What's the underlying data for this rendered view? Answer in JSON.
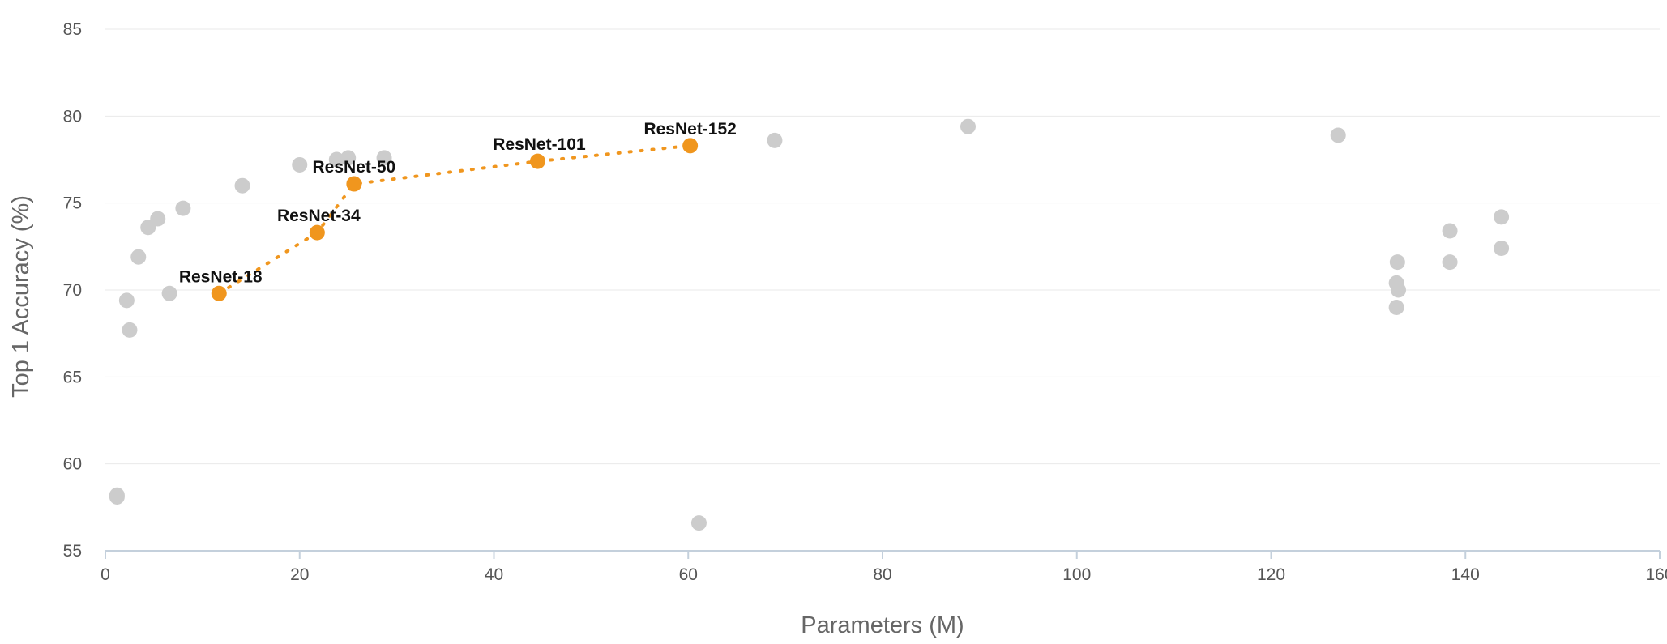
{
  "chart_data": {
    "type": "scatter",
    "xlabel": "Parameters (M)",
    "ylabel": "Top 1 Accuracy (%)",
    "xlim": [
      0,
      160
    ],
    "ylim": [
      55,
      85
    ],
    "xticks": [
      0,
      20,
      40,
      60,
      80,
      100,
      120,
      140,
      160
    ],
    "yticks": [
      55,
      60,
      65,
      70,
      75,
      80,
      85
    ],
    "grid": "horizontal",
    "colors": {
      "other": "#cccccc",
      "resnet": "#f0961e",
      "grid": "#eaeaea",
      "axis": "#c4d0dc"
    },
    "series": [
      {
        "points": [
          {
            "x": 1.2,
            "y": 58.2
          },
          {
            "x": 1.2,
            "y": 58.1
          },
          {
            "x": 2.2,
            "y": 69.4
          },
          {
            "x": 2.5,
            "y": 67.7
          },
          {
            "x": 3.4,
            "y": 71.9
          },
          {
            "x": 4.4,
            "y": 73.6
          },
          {
            "x": 5.4,
            "y": 74.1
          },
          {
            "x": 6.6,
            "y": 69.8
          },
          {
            "x": 8.0,
            "y": 74.7
          },
          {
            "x": 14.1,
            "y": 76.0
          },
          {
            "x": 20.0,
            "y": 77.2
          },
          {
            "x": 23.8,
            "y": 77.5
          },
          {
            "x": 25.0,
            "y": 77.6
          },
          {
            "x": 28.7,
            "y": 77.6
          },
          {
            "x": 61.1,
            "y": 56.6
          },
          {
            "x": 68.9,
            "y": 78.6
          },
          {
            "x": 88.8,
            "y": 79.4
          },
          {
            "x": 126.9,
            "y": 78.9
          },
          {
            "x": 132.9,
            "y": 69.0
          },
          {
            "x": 132.9,
            "y": 70.4
          },
          {
            "x": 133.0,
            "y": 71.6
          },
          {
            "x": 133.1,
            "y": 70.0
          },
          {
            "x": 138.4,
            "y": 73.4
          },
          {
            "x": 138.4,
            "y": 71.6
          },
          {
            "x": 143.7,
            "y": 74.2
          },
          {
            "x": 143.7,
            "y": 72.4
          }
        ]
      },
      {
        "connected": true,
        "line_style": "dotted",
        "points": [
          {
            "x": 11.7,
            "y": 69.8,
            "label": "ResNet-18"
          },
          {
            "x": 21.8,
            "y": 73.3,
            "label": "ResNet-34"
          },
          {
            "x": 25.6,
            "y": 76.1,
            "label": "ResNet-50"
          },
          {
            "x": 44.5,
            "y": 77.4,
            "label": "ResNet-101"
          },
          {
            "x": 60.2,
            "y": 78.3,
            "label": "ResNet-152"
          }
        ]
      }
    ]
  }
}
